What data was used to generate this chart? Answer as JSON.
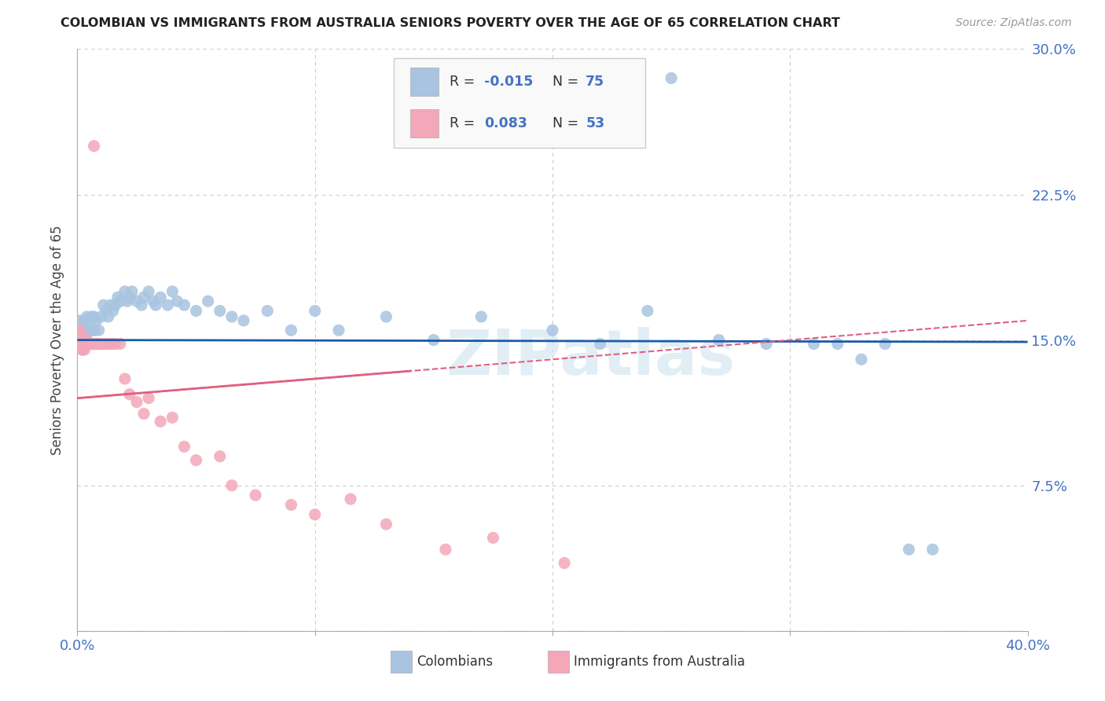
{
  "title": "COLOMBIAN VS IMMIGRANTS FROM AUSTRALIA SENIORS POVERTY OVER THE AGE OF 65 CORRELATION CHART",
  "source": "Source: ZipAtlas.com",
  "ylabel": "Seniors Poverty Over the Age of 65",
  "xlim": [
    0.0,
    0.4
  ],
  "ylim": [
    0.0,
    0.3
  ],
  "yticks": [
    0.0,
    0.075,
    0.15,
    0.225,
    0.3
  ],
  "ytick_labels": [
    "",
    "7.5%",
    "15.0%",
    "22.5%",
    "30.0%"
  ],
  "xticks": [
    0.0,
    0.1,
    0.2,
    0.3,
    0.4
  ],
  "xtick_labels_show": [
    "0.0%",
    "40.0%"
  ],
  "legend_labels": [
    "Colombians",
    "Immigrants from Australia"
  ],
  "colombian_R": "-0.015",
  "colombian_N": "75",
  "australia_R": "0.083",
  "australia_N": "53",
  "colombian_color": "#a8c4e0",
  "australia_color": "#f4a7b9",
  "colombian_line_color": "#1a5ca8",
  "australia_line_color": "#e06080",
  "watermark": "ZIPatlas",
  "background_color": "#ffffff",
  "grid_color": "#cccccc",
  "title_color": "#222222",
  "source_color": "#999999",
  "axis_label_color": "#4472c4",
  "colombians_x": [
    0.001,
    0.001,
    0.001,
    0.001,
    0.002,
    0.002,
    0.002,
    0.003,
    0.003,
    0.003,
    0.003,
    0.004,
    0.004,
    0.004,
    0.004,
    0.005,
    0.005,
    0.005,
    0.006,
    0.006,
    0.006,
    0.007,
    0.007,
    0.008,
    0.008,
    0.009,
    0.01,
    0.01,
    0.011,
    0.012,
    0.013,
    0.014,
    0.015,
    0.016,
    0.017,
    0.018,
    0.02,
    0.021,
    0.022,
    0.023,
    0.025,
    0.027,
    0.028,
    0.03,
    0.032,
    0.033,
    0.035,
    0.038,
    0.04,
    0.042,
    0.045,
    0.05,
    0.055,
    0.06,
    0.065,
    0.07,
    0.08,
    0.09,
    0.1,
    0.11,
    0.13,
    0.15,
    0.17,
    0.2,
    0.22,
    0.24,
    0.25,
    0.27,
    0.29,
    0.31,
    0.32,
    0.33,
    0.34,
    0.35,
    0.36
  ],
  "colombians_y": [
    0.148,
    0.152,
    0.155,
    0.16,
    0.15,
    0.145,
    0.148,
    0.155,
    0.148,
    0.152,
    0.16,
    0.15,
    0.148,
    0.155,
    0.162,
    0.148,
    0.155,
    0.16,
    0.148,
    0.155,
    0.162,
    0.155,
    0.162,
    0.148,
    0.16,
    0.155,
    0.162,
    0.148,
    0.168,
    0.165,
    0.162,
    0.168,
    0.165,
    0.168,
    0.172,
    0.17,
    0.175,
    0.17,
    0.172,
    0.175,
    0.17,
    0.168,
    0.172,
    0.175,
    0.17,
    0.168,
    0.172,
    0.168,
    0.175,
    0.17,
    0.168,
    0.165,
    0.17,
    0.165,
    0.162,
    0.16,
    0.165,
    0.155,
    0.165,
    0.155,
    0.162,
    0.15,
    0.162,
    0.155,
    0.148,
    0.165,
    0.285,
    0.15,
    0.148,
    0.148,
    0.148,
    0.14,
    0.148,
    0.042,
    0.042
  ],
  "australia_x": [
    0.001,
    0.001,
    0.001,
    0.002,
    0.002,
    0.002,
    0.002,
    0.003,
    0.003,
    0.003,
    0.004,
    0.004,
    0.004,
    0.005,
    0.005,
    0.005,
    0.006,
    0.006,
    0.007,
    0.007,
    0.007,
    0.008,
    0.008,
    0.009,
    0.009,
    0.01,
    0.01,
    0.011,
    0.012,
    0.013,
    0.014,
    0.015,
    0.016,
    0.018,
    0.02,
    0.022,
    0.025,
    0.028,
    0.03,
    0.035,
    0.04,
    0.045,
    0.05,
    0.06,
    0.065,
    0.075,
    0.09,
    0.1,
    0.115,
    0.13,
    0.155,
    0.175,
    0.205
  ],
  "australia_y": [
    0.148,
    0.15,
    0.155,
    0.145,
    0.148,
    0.152,
    0.148,
    0.148,
    0.145,
    0.148,
    0.148,
    0.148,
    0.15,
    0.148,
    0.148,
    0.148,
    0.148,
    0.148,
    0.148,
    0.148,
    0.25,
    0.148,
    0.148,
    0.148,
    0.148,
    0.148,
    0.148,
    0.148,
    0.148,
    0.148,
    0.148,
    0.148,
    0.148,
    0.148,
    0.13,
    0.122,
    0.118,
    0.112,
    0.12,
    0.108,
    0.11,
    0.095,
    0.088,
    0.09,
    0.075,
    0.07,
    0.065,
    0.06,
    0.068,
    0.055,
    0.042,
    0.048,
    0.035
  ],
  "col_line_x": [
    0.0,
    0.4
  ],
  "col_line_y": [
    0.15,
    0.149
  ],
  "aus_line_x": [
    0.0,
    0.4
  ],
  "aus_line_y": [
    0.12,
    0.16
  ]
}
